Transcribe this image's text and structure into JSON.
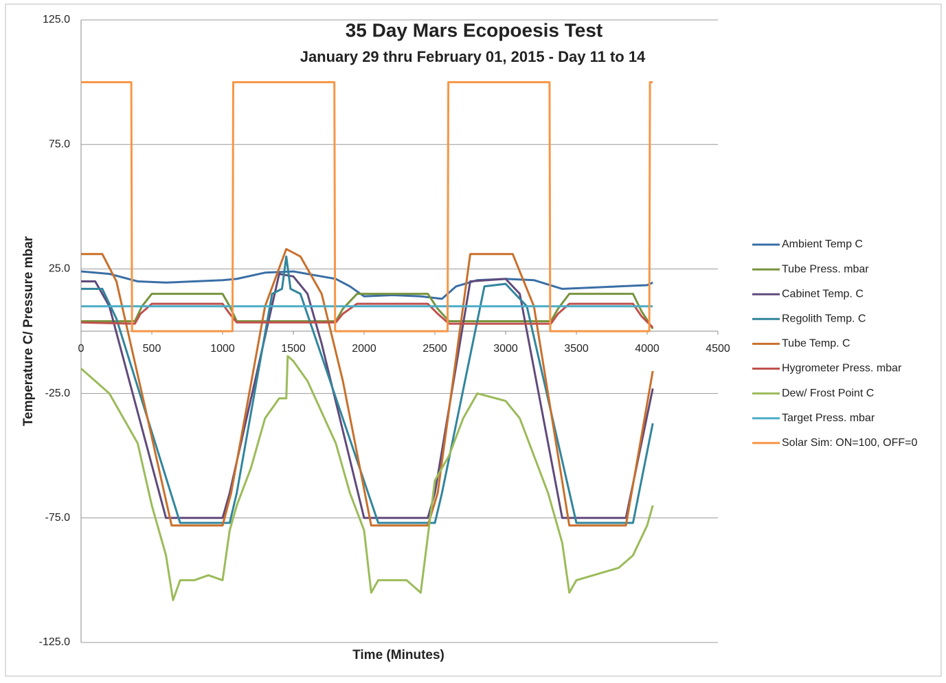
{
  "chart_data": {
    "type": "line",
    "title": "35 Day Mars Ecopoesis Test",
    "subtitle": "January 29 thru February 01, 2015 - Day 11 to 14",
    "x_label": "Time (Minutes)",
    "y_label": "Temperature C/ Pressure mbar",
    "xlim": [
      0,
      4500
    ],
    "xticks": [
      0,
      500,
      1000,
      1500,
      2000,
      2500,
      3000,
      3500,
      4000,
      4500
    ],
    "ylim": [
      -125,
      125
    ],
    "yticks": [
      {
        "value": 125,
        "label": "125.0"
      },
      {
        "value": 75,
        "label": "75.0"
      },
      {
        "value": 25,
        "label": "25.0"
      },
      {
        "value": -25,
        "label": "-25.0"
      },
      {
        "value": -75,
        "label": "-75.0"
      },
      {
        "value": -125,
        "label": "-125.0"
      }
    ],
    "grid": true,
    "legend": "right",
    "series": [
      {
        "name": "Ambient Temp C",
        "color": "#3a6ea5",
        "x": [
          0,
          200,
          400,
          600,
          800,
          1000,
          1100,
          1300,
          1500,
          1700,
          1800,
          1900,
          2000,
          2200,
          2400,
          2550,
          2650,
          2800,
          3000,
          3200,
          3400,
          3600,
          3800,
          4000,
          4040
        ],
        "values": [
          24,
          23,
          20,
          19.5,
          20,
          20.5,
          21,
          23.5,
          24,
          22,
          21,
          18,
          14,
          14.5,
          14,
          13,
          18,
          20.5,
          21,
          20.5,
          17,
          17.5,
          18,
          18.5,
          19.5
        ]
      },
      {
        "name": "Tube Press. mbar",
        "color": "#77933c",
        "x": [
          0,
          380,
          430,
          500,
          1000,
          1050,
          1100,
          1800,
          1850,
          1950,
          2450,
          2520,
          2600,
          3320,
          3370,
          3450,
          3900,
          3960,
          4040
        ],
        "values": [
          4,
          4,
          10,
          15,
          15,
          10,
          4,
          4,
          9,
          15,
          15,
          9,
          4,
          4,
          9,
          15,
          15,
          8,
          1
        ]
      },
      {
        "name": "Cabinet Temp. C",
        "color": "#604a7b",
        "x": [
          0,
          100,
          200,
          600,
          1000,
          1050,
          1400,
          1500,
          1600,
          1700,
          2000,
          2450,
          2500,
          2750,
          3000,
          3100,
          3400,
          3850,
          4040
        ],
        "values": [
          20,
          20,
          10,
          -75,
          -75,
          -65,
          23,
          22,
          15,
          -5,
          -75,
          -75,
          -65,
          20,
          21,
          15,
          -75,
          -75,
          -23
        ]
      },
      {
        "name": "Regolith Temp. C",
        "color": "#31859c",
        "x": [
          0,
          150,
          250,
          700,
          1050,
          1100,
          1350,
          1420,
          1450,
          1480,
          1550,
          1700,
          2100,
          2500,
          2550,
          2850,
          3000,
          3150,
          3500,
          3900,
          4040
        ],
        "values": [
          17,
          17,
          5,
          -77,
          -77,
          -65,
          15,
          17,
          30,
          17,
          15,
          -10,
          -77,
          -77,
          -65,
          18,
          19,
          10,
          -77,
          -77,
          -37
        ]
      },
      {
        "name": "Tube Temp. C",
        "color": "#c8702c",
        "x": [
          0,
          150,
          250,
          450,
          640,
          1000,
          1060,
          1300,
          1450,
          1550,
          1700,
          1850,
          2050,
          2450,
          2520,
          2750,
          3050,
          3200,
          3450,
          3850,
          4040
        ],
        "values": [
          31,
          31,
          20,
          -30,
          -78,
          -78,
          -65,
          10,
          33,
          30,
          15,
          -20,
          -78,
          -78,
          -65,
          31,
          31,
          10,
          -78,
          -78,
          -16
        ]
      },
      {
        "name": "Hygrometer Press. mbar",
        "color": "#c0504d",
        "x": [
          0,
          380,
          420,
          500,
          1000,
          1050,
          1100,
          1800,
          1850,
          1950,
          2450,
          2520,
          2600,
          3320,
          3370,
          3450,
          3900,
          3960,
          4040
        ],
        "values": [
          3.5,
          3,
          7,
          11,
          11,
          7,
          3.5,
          3.5,
          7,
          11,
          11,
          7,
          3,
          3,
          7,
          11,
          11,
          6,
          1.5
        ]
      },
      {
        "name": "Dew/ Frost Point C",
        "color": "#9bbb59",
        "x": [
          0,
          200,
          400,
          500,
          600,
          650,
          700,
          800,
          900,
          1000,
          1050,
          1100,
          1200,
          1300,
          1400,
          1450,
          1460,
          1500,
          1600,
          1800,
          1900,
          2000,
          2050,
          2100,
          2300,
          2400,
          2500,
          2600,
          2700,
          2800,
          3000,
          3100,
          3200,
          3300,
          3400,
          3450,
          3500,
          3800,
          3900,
          4000,
          4040
        ],
        "values": [
          -15,
          -25,
          -45,
          -70,
          -90,
          -108,
          -100,
          -100,
          -98,
          -100,
          -80,
          -70,
          -55,
          -35,
          -27,
          -27,
          -10,
          -12,
          -20,
          -45,
          -65,
          -80,
          -105,
          -100,
          -100,
          -105,
          -60,
          -50,
          -35,
          -25,
          -28,
          -35,
          -50,
          -65,
          -85,
          -105,
          -100,
          -95,
          -90,
          -78,
          -70
        ]
      },
      {
        "name": "Target Press. mbar",
        "color": "#4bacc6",
        "x": [
          0,
          4040
        ],
        "values": [
          10,
          10
        ]
      },
      {
        "name": "Solar Sim: ON=100, OFF=0",
        "color": "#f79646",
        "x": [
          0,
          355,
          360,
          1070,
          1075,
          1790,
          1795,
          2590,
          2595,
          3310,
          3315,
          4015,
          4020,
          4040
        ],
        "values": [
          100,
          100,
          0,
          0,
          100,
          100,
          0,
          0,
          100,
          100,
          0,
          0,
          100,
          100
        ]
      }
    ]
  }
}
